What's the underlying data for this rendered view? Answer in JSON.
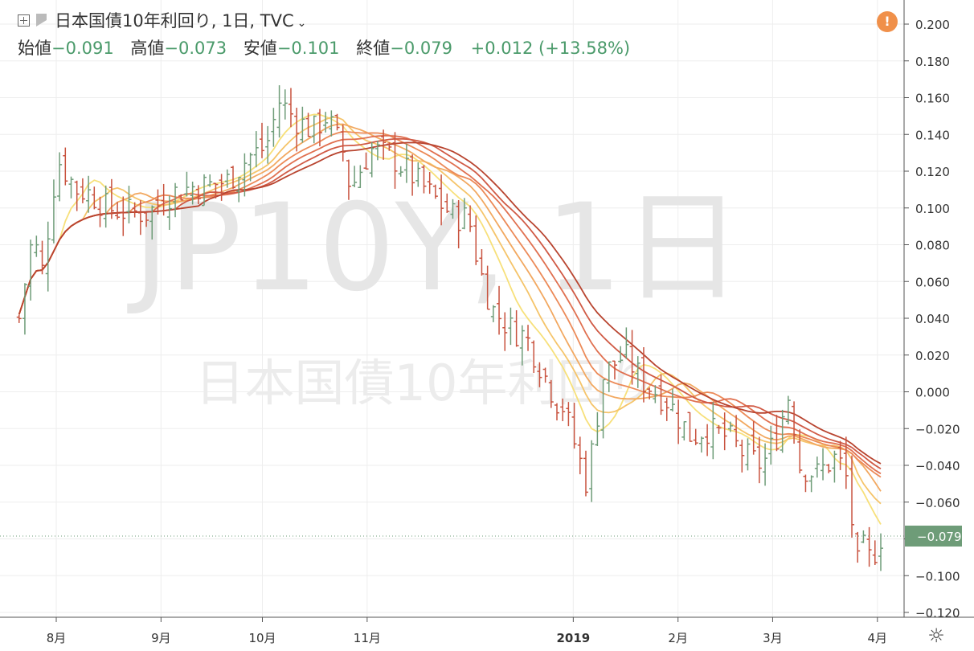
{
  "header": {
    "symbol_title": "日本国債10年利回り, 1日, TVC",
    "open_label": "始値",
    "open_value": "−0.091",
    "high_label": "高値",
    "high_value": "−0.073",
    "low_label": "安値",
    "low_value": "−0.101",
    "close_label": "終値",
    "close_value": "−0.079",
    "change_value": "+0.012",
    "change_pct": "(+13.58%)"
  },
  "watermark": {
    "line1": "JP10Y, 1日",
    "line2": "日本国債10年利回り"
  },
  "last_price_label": "−0.079",
  "icons": {
    "alert": "alert-icon",
    "settings": "gear-icon",
    "symbol": "plus-square-icon",
    "flag": "flag-icon"
  },
  "colors": {
    "up": "#6e9c78",
    "down": "#c8523e",
    "accent": "#f0904a",
    "last_price_bg": "#6e9c78"
  },
  "chart_data": {
    "type": "ohlc",
    "y_axis": {
      "min": -0.12,
      "max": 0.2,
      "ticks": [
        "0.200",
        "0.180",
        "0.160",
        "0.140",
        "0.120",
        "0.100",
        "0.080",
        "0.060",
        "0.040",
        "0.020",
        "0.000",
        "−0.020",
        "−0.040",
        "−0.060",
        "−0.080",
        "−0.100",
        "−0.120"
      ]
    },
    "x_axis": {
      "ticks": [
        "8月",
        "9月",
        "10月",
        "11月",
        "2019",
        "2月",
        "3月",
        "4月"
      ]
    },
    "grid": true,
    "series": [
      {
        "name": "price",
        "close_points": [
          [
            "2018-07-20",
            0.04
          ],
          [
            "2018-07-24",
            0.085
          ],
          [
            "2018-07-27",
            0.065
          ],
          [
            "2018-07-30",
            0.11
          ],
          [
            "2018-08-01",
            0.125
          ],
          [
            "2018-08-06",
            0.11
          ],
          [
            "2018-08-10",
            0.108
          ],
          [
            "2018-08-15",
            0.1
          ],
          [
            "2018-08-20",
            0.098
          ],
          [
            "2018-08-27",
            0.097
          ],
          [
            "2018-09-03",
            0.108
          ],
          [
            "2018-09-10",
            0.112
          ],
          [
            "2018-09-14",
            0.112
          ],
          [
            "2018-09-20",
            0.115
          ],
          [
            "2018-09-26",
            0.128
          ],
          [
            "2018-10-01",
            0.133
          ],
          [
            "2018-10-05",
            0.158
          ],
          [
            "2018-10-10",
            0.148
          ],
          [
            "2018-10-15",
            0.142
          ],
          [
            "2018-10-19",
            0.15
          ],
          [
            "2018-10-24",
            0.13
          ],
          [
            "2018-10-26",
            0.11
          ],
          [
            "2018-11-01",
            0.132
          ],
          [
            "2018-11-07",
            0.128
          ],
          [
            "2018-11-13",
            0.118
          ],
          [
            "2018-11-20",
            0.105
          ],
          [
            "2018-11-26",
            0.095
          ],
          [
            "2018-11-30",
            0.095
          ],
          [
            "2018-12-03",
            0.068
          ],
          [
            "2018-12-07",
            0.045
          ],
          [
            "2018-12-12",
            0.035
          ],
          [
            "2018-12-17",
            0.03
          ],
          [
            "2018-12-21",
            0.015
          ],
          [
            "2018-12-26",
            -0.005
          ],
          [
            "2018-12-28",
            -0.008
          ],
          [
            "2019-01-04",
            -0.05
          ],
          [
            "2019-01-09",
            0.01
          ],
          [
            "2019-01-15",
            0.02
          ],
          [
            "2019-01-21",
            0.005
          ],
          [
            "2019-01-28",
            -0.005
          ],
          [
            "2019-02-04",
            -0.025
          ],
          [
            "2019-02-08",
            -0.02
          ],
          [
            "2019-02-15",
            -0.025
          ],
          [
            "2019-02-20",
            -0.035
          ],
          [
            "2019-02-25",
            -0.04
          ],
          [
            "2019-03-01",
            -0.025
          ],
          [
            "2019-03-05",
            0.0
          ],
          [
            "2019-03-08",
            -0.04
          ],
          [
            "2019-03-13",
            -0.045
          ],
          [
            "2019-03-19",
            -0.035
          ],
          [
            "2019-03-22",
            -0.048
          ],
          [
            "2019-03-25",
            -0.095
          ],
          [
            "2019-03-27",
            -0.085
          ],
          [
            "2019-03-29",
            -0.092
          ],
          [
            "2019-04-01",
            -0.079
          ]
        ]
      },
      {
        "name": "ma-envelope",
        "lines": 7
      }
    ]
  }
}
